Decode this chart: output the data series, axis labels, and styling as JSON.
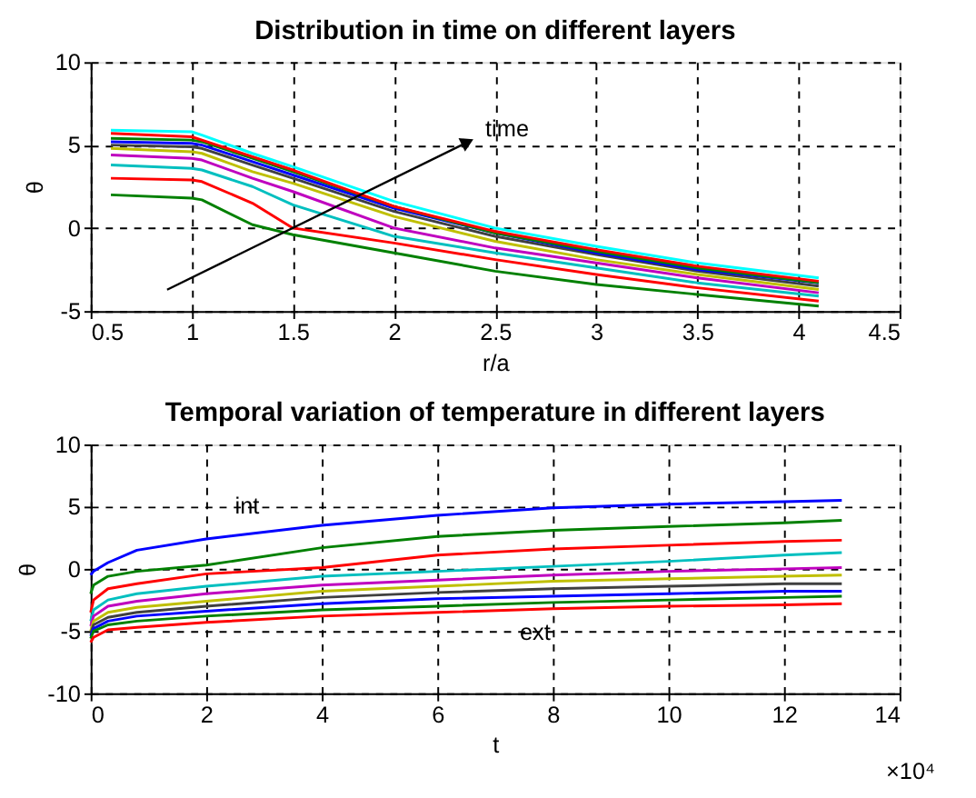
{
  "chart_data": [
    {
      "type": "line",
      "title": "Distribution in time on different layers",
      "xlabel": "r/a",
      "ylabel": "θ",
      "x": [
        0.6,
        1.0,
        1.05,
        1.3,
        1.5,
        2.0,
        2.5,
        3.0,
        3.5,
        4.1
      ],
      "series": [
        {
          "color": "#008000",
          "values": [
            2.0,
            1.8,
            1.7,
            0.2,
            -0.4,
            -1.5,
            -2.6,
            -3.4,
            -4.0,
            -4.7
          ]
        },
        {
          "color": "#ff0000",
          "values": [
            3.0,
            2.9,
            2.8,
            1.5,
            0.0,
            -0.9,
            -1.9,
            -2.8,
            -3.6,
            -4.4
          ]
        },
        {
          "color": "#00bfbf",
          "values": [
            3.8,
            3.6,
            3.5,
            2.5,
            1.4,
            -0.5,
            -1.5,
            -2.4,
            -3.3,
            -4.1
          ]
        },
        {
          "color": "#bf00bf",
          "values": [
            4.4,
            4.2,
            4.1,
            3.0,
            2.2,
            0.0,
            -1.2,
            -2.1,
            -3.0,
            -3.9
          ]
        },
        {
          "color": "#bfbf00",
          "values": [
            4.8,
            4.6,
            4.5,
            3.4,
            2.7,
            0.7,
            -0.8,
            -1.9,
            -2.8,
            -3.7
          ]
        },
        {
          "color": "#404040",
          "values": [
            5.0,
            4.9,
            4.8,
            3.8,
            3.0,
            1.0,
            -0.5,
            -1.6,
            -2.6,
            -3.5
          ]
        },
        {
          "color": "#0000ff",
          "values": [
            5.2,
            5.1,
            5.0,
            4.0,
            3.2,
            1.2,
            -0.3,
            -1.5,
            -2.5,
            -3.3
          ]
        },
        {
          "color": "#008000",
          "values": [
            5.4,
            5.3,
            5.2,
            4.2,
            3.4,
            1.3,
            -0.3,
            -1.4,
            -2.4,
            -3.3
          ]
        },
        {
          "color": "#ff0000",
          "values": [
            5.7,
            5.5,
            5.3,
            4.3,
            3.5,
            1.3,
            -0.2,
            -1.3,
            -2.3,
            -3.2
          ]
        },
        {
          "color": "#00ffff",
          "values": [
            5.9,
            5.8,
            5.6,
            4.5,
            3.7,
            1.6,
            0.0,
            -1.1,
            -2.1,
            -3.0
          ]
        }
      ],
      "xlim": [
        0.5,
        4.5
      ],
      "xticks": [
        0.5,
        1,
        1.5,
        2,
        2.5,
        3,
        3.5,
        4,
        4.5
      ],
      "ylim": [
        -5,
        10
      ],
      "yticks": [
        -5,
        0,
        5,
        10
      ],
      "grid": true,
      "line_style": "solid",
      "annotations": [
        "time"
      ]
    },
    {
      "type": "line",
      "title": "Temporal variation of temperature in different layers",
      "xlabel": "t",
      "ylabel": "θ",
      "x": [
        0,
        0.05,
        0.3,
        0.8,
        2,
        4,
        6,
        8,
        10,
        12,
        13
      ],
      "series": [
        {
          "color": "#0000ff",
          "values": [
            -0.5,
            -0.2,
            0.5,
            1.5,
            2.4,
            3.5,
            4.3,
            4.9,
            5.2,
            5.4,
            5.5
          ]
        },
        {
          "color": "#008000",
          "values": [
            -2.0,
            -1.3,
            -0.6,
            -0.2,
            0.3,
            1.7,
            2.6,
            3.1,
            3.4,
            3.7,
            3.9
          ]
        },
        {
          "color": "#ff0000",
          "values": [
            -3.5,
            -2.5,
            -1.6,
            -1.2,
            -0.4,
            0.1,
            1.1,
            1.6,
            1.9,
            2.2,
            2.3
          ]
        },
        {
          "color": "#00bfbf",
          "values": [
            -4.2,
            -3.3,
            -2.5,
            -2.0,
            -1.4,
            -0.6,
            -0.2,
            0.2,
            0.6,
            1.1,
            1.3
          ]
        },
        {
          "color": "#bf00bf",
          "values": [
            -4.6,
            -3.8,
            -3.0,
            -2.6,
            -2.0,
            -1.3,
            -0.9,
            -0.5,
            -0.2,
            0.0,
            0.1
          ]
        },
        {
          "color": "#bfbf00",
          "values": [
            -5.0,
            -4.2,
            -3.5,
            -3.1,
            -2.6,
            -1.8,
            -1.4,
            -1.0,
            -0.8,
            -0.6,
            -0.5
          ]
        },
        {
          "color": "#404040",
          "values": [
            -5.2,
            -4.5,
            -3.9,
            -3.5,
            -3.0,
            -2.3,
            -1.9,
            -1.6,
            -1.4,
            -1.2,
            -1.2
          ]
        },
        {
          "color": "#0000ff",
          "values": [
            -5.4,
            -4.8,
            -4.2,
            -3.8,
            -3.4,
            -2.8,
            -2.4,
            -2.2,
            -2.0,
            -1.8,
            -1.8
          ]
        },
        {
          "color": "#008000",
          "values": [
            -5.6,
            -5.0,
            -4.5,
            -4.2,
            -3.8,
            -3.3,
            -3.0,
            -2.7,
            -2.5,
            -2.3,
            -2.2
          ]
        },
        {
          "color": "#ff0000",
          "values": [
            -5.9,
            -5.5,
            -4.9,
            -4.7,
            -4.3,
            -3.8,
            -3.5,
            -3.2,
            -3.0,
            -2.9,
            -2.8
          ]
        }
      ],
      "xlim": [
        0,
        14
      ],
      "xticks": [
        0,
        2,
        4,
        6,
        8,
        10,
        12,
        14
      ],
      "ylim": [
        -10,
        10
      ],
      "yticks": [
        -10,
        -5,
        0,
        5,
        10
      ],
      "grid": true,
      "line_style": "solid",
      "annotations": [
        "int",
        "ext",
        "×10⁴"
      ]
    }
  ]
}
